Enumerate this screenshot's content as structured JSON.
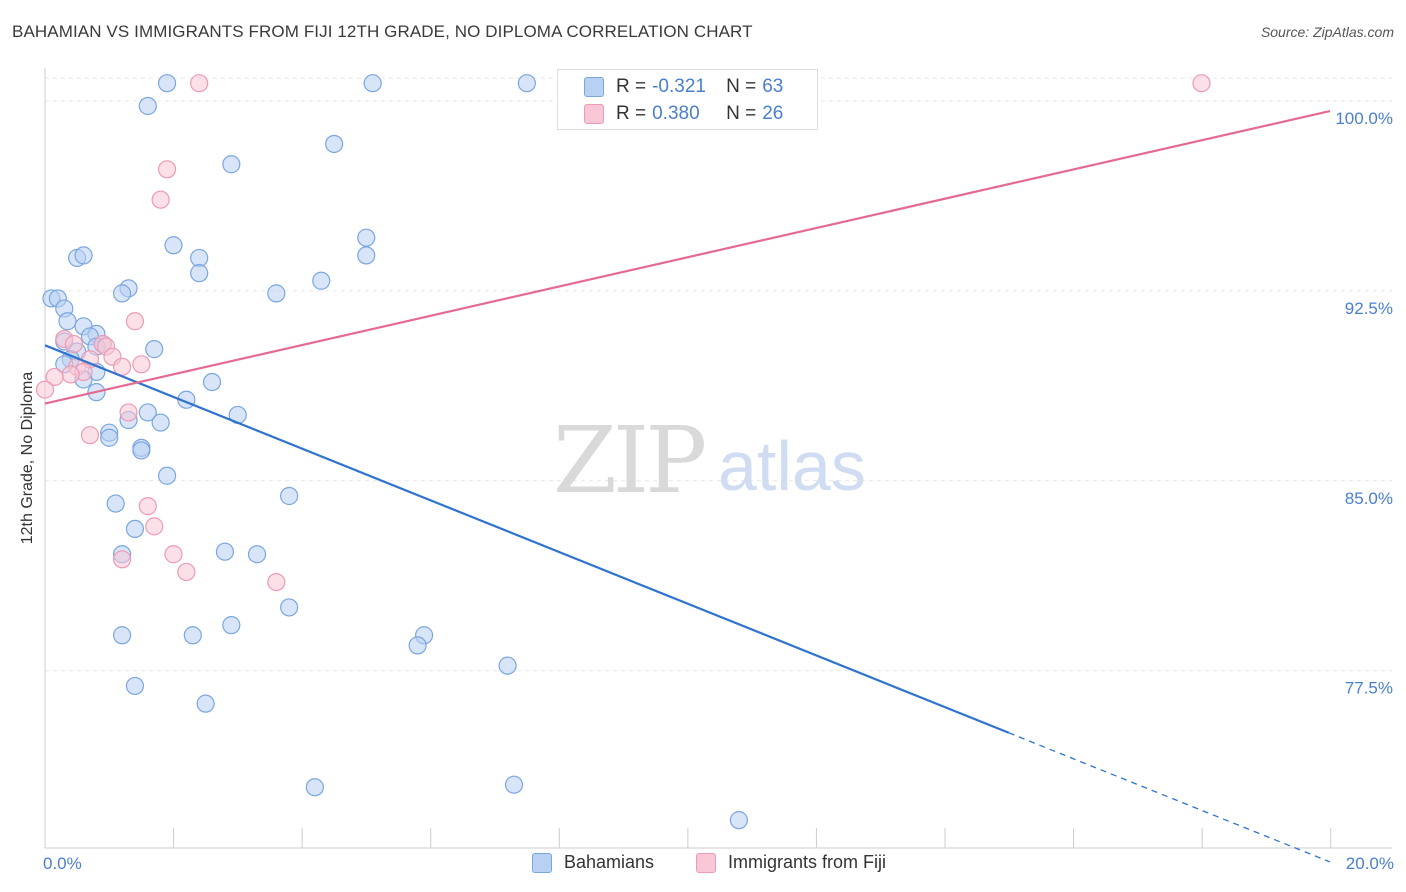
{
  "title": "BAHAMIAN VS IMMIGRANTS FROM FIJI 12TH GRADE, NO DIPLOMA CORRELATION CHART",
  "source": "Source: ZipAtlas.com",
  "watermark": {
    "zip": "ZIP",
    "atlas": "atlas"
  },
  "colors": {
    "blue_fill": "#b8d0f2",
    "blue_stroke": "#7aa6e0",
    "blue_line": "#2f73d0",
    "pink_fill": "#f8c6d5",
    "pink_stroke": "#ee9ab3",
    "pink_line": "#e46a93",
    "axis_label": "#4a7fd0",
    "grid": "#e6e6e6"
  },
  "legend": {
    "rows": [
      {
        "r_label": "R =",
        "r_value": "-0.321",
        "n_label": "N =",
        "n_value": "63"
      },
      {
        "r_label": "R =",
        "r_value": "0.380",
        "n_label": "N =",
        "n_value": "26"
      }
    ]
  },
  "bottom_legend": [
    "Bahamians",
    "Immigrants from Fiji"
  ],
  "chart_data": {
    "type": "scatter",
    "title": "BAHAMIAN VS IMMIGRANTS FROM FIJI 12TH GRADE, NO DIPLOMA CORRELATION CHART",
    "xlabel": "",
    "ylabel": "12th Grade, No Diploma",
    "xlim": [
      0,
      20
    ],
    "ylim": [
      70.5,
      101.3
    ],
    "x_tick_labels": [
      "0.0%",
      "20.0%"
    ],
    "y_ticks": [
      77.5,
      85.0,
      92.5,
      100.0
    ],
    "y_tick_labels": [
      "77.5%",
      "85.0%",
      "92.5%",
      "100.0%"
    ],
    "grid": true,
    "series": [
      {
        "name": "Bahamians",
        "color": "blue",
        "r": -0.321,
        "n": 63,
        "trend": {
          "x": [
            0.0,
            15.0
          ],
          "y": [
            90.35,
            75.05
          ],
          "dashed_to": [
            20.0,
            69.95
          ]
        },
        "points": [
          [
            1.9,
            100.7
          ],
          [
            5.1,
            100.7
          ],
          [
            7.5,
            100.7
          ],
          [
            1.6,
            99.8
          ],
          [
            4.5,
            98.3
          ],
          [
            2.9,
            97.5
          ],
          [
            5.0,
            94.6
          ],
          [
            2.0,
            94.3
          ],
          [
            0.5,
            93.8
          ],
          [
            0.6,
            93.9
          ],
          [
            2.4,
            93.8
          ],
          [
            5.0,
            93.9
          ],
          [
            2.4,
            93.2
          ],
          [
            4.3,
            92.9
          ],
          [
            1.3,
            92.6
          ],
          [
            1.2,
            92.4
          ],
          [
            3.6,
            92.4
          ],
          [
            0.1,
            92.2
          ],
          [
            0.2,
            92.2
          ],
          [
            0.3,
            91.8
          ],
          [
            0.35,
            91.3
          ],
          [
            0.6,
            91.1
          ],
          [
            0.8,
            90.8
          ],
          [
            0.7,
            90.7
          ],
          [
            0.3,
            90.5
          ],
          [
            0.9,
            90.4
          ],
          [
            0.8,
            90.3
          ],
          [
            1.7,
            90.2
          ],
          [
            0.5,
            90.1
          ],
          [
            0.4,
            89.8
          ],
          [
            0.3,
            89.6
          ],
          [
            0.8,
            89.3
          ],
          [
            0.6,
            89.0
          ],
          [
            2.6,
            88.9
          ],
          [
            0.8,
            88.5
          ],
          [
            2.2,
            88.2
          ],
          [
            1.6,
            87.7
          ],
          [
            3.0,
            87.6
          ],
          [
            1.3,
            87.4
          ],
          [
            1.8,
            87.3
          ],
          [
            1.0,
            86.9
          ],
          [
            1.0,
            86.7
          ],
          [
            1.5,
            86.3
          ],
          [
            1.5,
            86.2
          ],
          [
            1.9,
            85.2
          ],
          [
            1.1,
            84.1
          ],
          [
            3.8,
            84.4
          ],
          [
            1.4,
            83.1
          ],
          [
            2.8,
            82.2
          ],
          [
            3.3,
            82.1
          ],
          [
            1.2,
            82.1
          ],
          [
            3.8,
            80.0
          ],
          [
            2.9,
            79.3
          ],
          [
            1.2,
            78.9
          ],
          [
            2.3,
            78.9
          ],
          [
            5.9,
            78.9
          ],
          [
            5.8,
            78.5
          ],
          [
            7.2,
            77.7
          ],
          [
            1.4,
            76.9
          ],
          [
            2.5,
            76.2
          ],
          [
            4.2,
            72.9
          ],
          [
            7.3,
            73.0
          ],
          [
            10.8,
            71.6
          ]
        ]
      },
      {
        "name": "Immigrants from Fiji",
        "color": "pink",
        "r": 0.38,
        "n": 26,
        "trend": {
          "x": [
            0.0,
            20.0
          ],
          "y": [
            88.05,
            99.6
          ]
        },
        "points": [
          [
            2.4,
            100.7
          ],
          [
            18.0,
            100.7
          ],
          [
            1.9,
            97.3
          ],
          [
            1.8,
            96.1
          ],
          [
            1.4,
            91.3
          ],
          [
            0.3,
            90.6
          ],
          [
            0.45,
            90.4
          ],
          [
            0.9,
            90.4
          ],
          [
            0.95,
            90.3
          ],
          [
            0.7,
            89.8
          ],
          [
            1.05,
            89.9
          ],
          [
            1.5,
            89.6
          ],
          [
            0.5,
            89.5
          ],
          [
            0.6,
            89.3
          ],
          [
            1.2,
            89.5
          ],
          [
            0.4,
            89.2
          ],
          [
            0.15,
            89.1
          ],
          [
            0.0,
            88.6
          ],
          [
            1.3,
            87.7
          ],
          [
            0.7,
            86.8
          ],
          [
            1.6,
            84.0
          ],
          [
            1.7,
            83.2
          ],
          [
            2.0,
            82.1
          ],
          [
            1.2,
            81.9
          ],
          [
            2.2,
            81.4
          ],
          [
            3.6,
            81.0
          ]
        ]
      }
    ]
  }
}
